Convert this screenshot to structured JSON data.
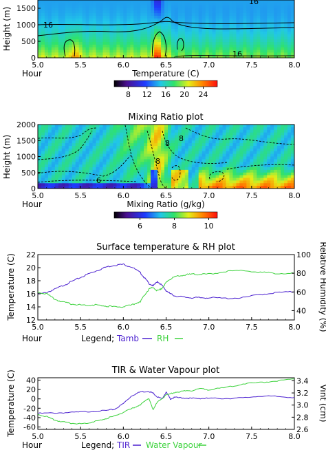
{
  "chart_data": [
    {
      "type": "heatmap",
      "title": "",
      "xlabel": "Temperature (C)",
      "ylabel": "Height (m)",
      "hour_label": "Hour",
      "x_ticks": [
        "5.0",
        "5.5",
        "6.0",
        "6.5",
        "7.0",
        "7.5",
        "8.0"
      ],
      "y_ticks": [
        "0",
        "500",
        "1000",
        "1500"
      ],
      "xlim": [
        5.0,
        8.0
      ],
      "ylim": [
        0,
        1750
      ],
      "contour_labels": [
        "16",
        "16",
        "16"
      ],
      "colorbar_ticks": [
        "8",
        "12",
        "16",
        "20",
        "24"
      ],
      "colorbar_range": [
        5,
        27
      ],
      "colorbar_values": [
        8,
        12,
        16,
        20,
        24
      ]
    },
    {
      "type": "heatmap",
      "title": "Mixing Ratio plot",
      "xlabel": "Mixing Ratio (g/kg)",
      "ylabel": "Height (m)",
      "hour_label": "Hour",
      "x_ticks": [
        "5.0",
        "5.5",
        "6.0",
        "6.5",
        "7.0",
        "7.5",
        "8.0"
      ],
      "y_ticks": [
        "0",
        "500",
        "1000",
        "1500",
        "2000"
      ],
      "xlim": [
        5.0,
        8.0
      ],
      "ylim": [
        0,
        2000
      ],
      "contour_labels": [
        "8",
        "8",
        "8",
        "6"
      ],
      "colorbar_ticks": [
        "6",
        "8",
        "10"
      ],
      "colorbar_range": [
        4.5,
        10.5
      ],
      "colorbar_values": [
        6,
        8,
        10
      ]
    },
    {
      "type": "line",
      "title": "Surface temperature & RH plot",
      "ylabel": "Temperature (C)",
      "y2label": "Relative Humidity (%)",
      "hour_label": "Hour",
      "legend_label": "Legend;",
      "x_ticks": [
        "5.0",
        "5.5",
        "6.0",
        "6.5",
        "7.0",
        "7.5",
        "8.0"
      ],
      "y_ticks": [
        "12",
        "14",
        "16",
        "18",
        "20",
        "22"
      ],
      "y2_ticks": [
        "40",
        "60",
        "80",
        "100"
      ],
      "xlim": [
        5.0,
        8.0
      ],
      "ylim": [
        12,
        22
      ],
      "y2lim": [
        30,
        100
      ],
      "series": [
        {
          "name": "Tamb",
          "axis": "left",
          "color": "#4a1fcf",
          "x": [
            5.0,
            5.1,
            5.2,
            5.3,
            5.4,
            5.5,
            5.6,
            5.7,
            5.8,
            5.9,
            6.0,
            6.1,
            6.2,
            6.25,
            6.3,
            6.35,
            6.4,
            6.45,
            6.5,
            6.55,
            6.6,
            6.7,
            6.8,
            6.9,
            7.0,
            7.2,
            7.4,
            7.6,
            7.8,
            8.0
          ],
          "y": [
            15.9,
            16.2,
            16.7,
            17.3,
            17.9,
            18.5,
            19.1,
            19.6,
            20.1,
            20.4,
            20.5,
            20.1,
            19.2,
            18.4,
            17.6,
            17.2,
            17.9,
            17.3,
            16.5,
            16.0,
            15.7,
            15.5,
            15.4,
            15.4,
            15.4,
            15.3,
            15.4,
            15.9,
            16.2,
            16.3
          ]
        },
        {
          "name": "RH",
          "axis": "right",
          "color": "#3dd23d",
          "x": [
            5.0,
            5.1,
            5.2,
            5.3,
            5.4,
            5.5,
            5.6,
            5.7,
            5.8,
            5.9,
            6.0,
            6.1,
            6.2,
            6.25,
            6.3,
            6.35,
            6.4,
            6.45,
            6.5,
            6.55,
            6.6,
            6.7,
            6.8,
            6.9,
            7.0,
            7.2,
            7.4,
            7.6,
            7.8,
            8.0
          ],
          "y": [
            60,
            58,
            52,
            49,
            47,
            46,
            46,
            46,
            45,
            44,
            44,
            46,
            50,
            57,
            63,
            65,
            61,
            64,
            70,
            74,
            76,
            78,
            79,
            79,
            79,
            82,
            83,
            81,
            80,
            80
          ]
        }
      ]
    },
    {
      "type": "line",
      "title": "TIR & Water Vapour plot",
      "ylabel": "Temperature (C)",
      "y2label": "Vint (cm)",
      "hour_label": "Hour",
      "legend_label": "Legend;",
      "x_ticks": [
        "5.0",
        "5.5",
        "6.0",
        "6.5",
        "7.0",
        "7.5",
        "8.0"
      ],
      "y_ticks": [
        "-60",
        "-40",
        "-20",
        "0",
        "20",
        "40"
      ],
      "y2_ticks": [
        "2.6",
        "2.8",
        "3.0",
        "3.2",
        "3.4"
      ],
      "xlim": [
        5.0,
        8.0
      ],
      "ylim": [
        -65,
        45
      ],
      "y2lim": [
        2.6,
        3.45
      ],
      "series": [
        {
          "name": "TIR",
          "axis": "left",
          "color": "#4a1fcf",
          "x": [
            5.0,
            5.2,
            5.4,
            5.6,
            5.8,
            5.9,
            6.0,
            6.1,
            6.2,
            6.3,
            6.35,
            6.4,
            6.45,
            6.5,
            6.55,
            6.6,
            6.7,
            6.8,
            6.9,
            7.0,
            7.2,
            7.4,
            7.6,
            7.8,
            8.0
          ],
          "y": [
            -31,
            -30,
            -29,
            -27,
            -25,
            -22,
            -10,
            7,
            15,
            16,
            12,
            4,
            0,
            14,
            0,
            3,
            2,
            1,
            1,
            1,
            1,
            2,
            6,
            5,
            3
          ]
        },
        {
          "name": "Water Vapour",
          "axis": "right",
          "color": "#3dd23d",
          "x": [
            5.0,
            5.1,
            5.2,
            5.3,
            5.4,
            5.5,
            5.6,
            5.7,
            5.8,
            5.9,
            6.0,
            6.1,
            6.2,
            6.3,
            6.35,
            6.4,
            6.5,
            6.6,
            6.7,
            6.8,
            6.9,
            7.0,
            7.2,
            7.4,
            7.6,
            7.8,
            8.0
          ],
          "y": [
            2.85,
            2.81,
            2.75,
            2.72,
            2.7,
            2.69,
            2.71,
            2.74,
            2.78,
            2.82,
            2.88,
            2.94,
            3.01,
            3.11,
            2.92,
            3.06,
            3.16,
            3.21,
            3.23,
            3.24,
            3.27,
            3.25,
            3.29,
            3.35,
            3.37,
            3.4,
            3.43
          ]
        }
      ]
    }
  ]
}
